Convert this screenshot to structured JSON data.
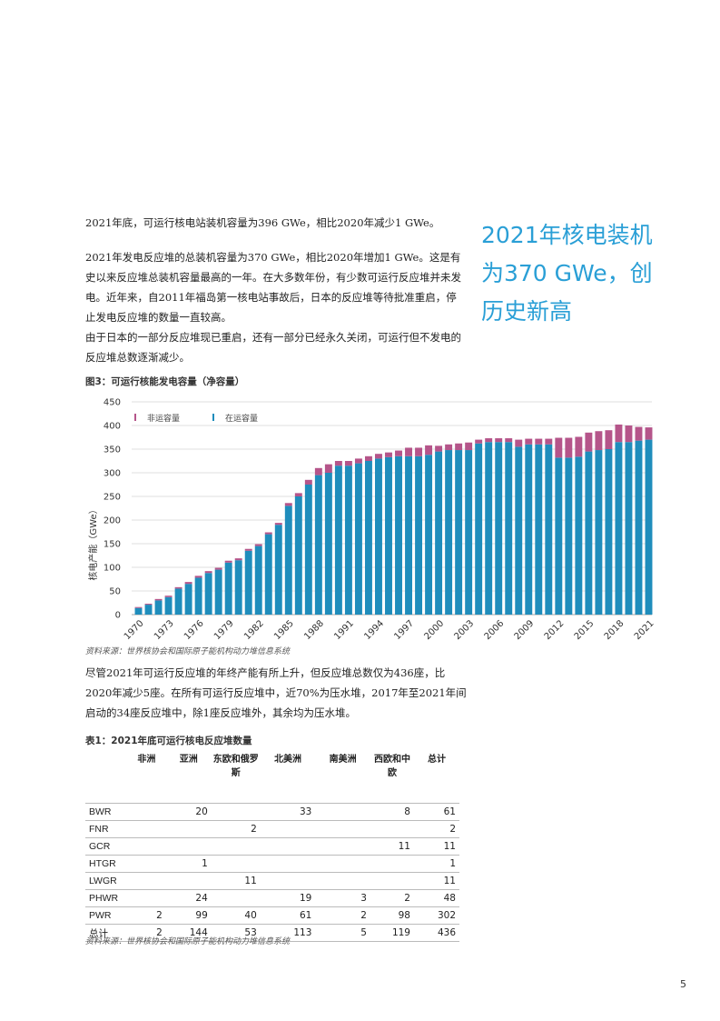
{
  "paragraphs": {
    "p1": "2021年底，可运行核电站装机容量为396 GWe，相比2020年减少1 GWe。",
    "p2": "2021年发电反应堆的总装机容量为370 GWe，相比2020年增加1 GWe。这是有史以来反应堆总装机容量最高的一年。在大多数年份，有少数可运行反应堆并未发电。近年来，自2011年福岛第一核电站事故后，日本的反应堆等待批准重启，停止发电反应堆的数量一直较高。",
    "p3": "由于日本的一部分反应堆现已重启，还有一部分已经永久关闭，可运行但不发电的反应堆总数逐渐减少。",
    "p4": "尽管2021年可运行反应堆的年终产能有所上升，但反应堆总数仅为436座，比2020年减少5座。在所有可运行反应堆中，近70%为压水堆，2017年至2021年间启动的34座反应堆中，除1座反应堆外，其余均为压水堆。"
  },
  "pullquote": "2021年核电装机为370 GWe，创历史新高",
  "figure": {
    "caption": "图3：可运行核能发电容量（净容量）",
    "source": "资料来源：世界核协会和国际原子能机构动力堆信息系统"
  },
  "chart_data": {
    "type": "bar",
    "stacked": true,
    "ylabel": "核电产能（GWe）",
    "ylim": [
      0,
      450
    ],
    "yticks": [
      0,
      50,
      100,
      150,
      200,
      250,
      300,
      350,
      400,
      450
    ],
    "x_tick_labels": [
      "1970",
      "1973",
      "1976",
      "1979",
      "1982",
      "1985",
      "1988",
      "1991",
      "1994",
      "1997",
      "2000",
      "2003",
      "2006",
      "2009",
      "2012",
      "2015",
      "2018",
      "2021"
    ],
    "categories": [
      1970,
      1971,
      1972,
      1973,
      1974,
      1975,
      1976,
      1977,
      1978,
      1979,
      1980,
      1981,
      1982,
      1983,
      1984,
      1985,
      1986,
      1987,
      1988,
      1989,
      1990,
      1991,
      1992,
      1993,
      1994,
      1995,
      1996,
      1997,
      1998,
      1999,
      2000,
      2001,
      2002,
      2003,
      2004,
      2005,
      2006,
      2007,
      2008,
      2009,
      2010,
      2011,
      2012,
      2013,
      2014,
      2015,
      2016,
      2017,
      2018,
      2019,
      2020,
      2021
    ],
    "legend_position": "top-left",
    "grid": "horizontal",
    "colors": {
      "operating": "#1f8dbc",
      "idle": "#b5558a"
    },
    "series": [
      {
        "name": "在运容量",
        "key": "operating",
        "values": [
          14,
          21,
          30,
          37,
          55,
          65,
          78,
          88,
          95,
          110,
          115,
          135,
          145,
          170,
          190,
          230,
          250,
          275,
          295,
          300,
          315,
          315,
          320,
          325,
          330,
          333,
          335,
          335,
          335,
          338,
          345,
          348,
          348,
          348,
          362,
          365,
          365,
          365,
          355,
          360,
          360,
          360,
          332,
          332,
          334,
          345,
          348,
          350,
          365,
          365,
          368,
          370
        ]
      },
      {
        "name": "非运容量",
        "key": "idle",
        "values": [
          2,
          2,
          3,
          3,
          3,
          4,
          4,
          4,
          4,
          4,
          4,
          4,
          4,
          4,
          4,
          6,
          7,
          10,
          15,
          18,
          10,
          10,
          10,
          10,
          10,
          10,
          12,
          18,
          18,
          20,
          12,
          12,
          14,
          16,
          8,
          8,
          8,
          8,
          15,
          12,
          12,
          12,
          42,
          42,
          42,
          40,
          40,
          40,
          37,
          35,
          29,
          26
        ]
      }
    ]
  },
  "table": {
    "caption": "表1：2021年底可运行核电反应堆数量",
    "headers": [
      "",
      "非洲",
      "亚洲",
      "东欧和俄罗斯",
      "北美洲",
      "南美洲",
      "西欧和中欧",
      "总计"
    ],
    "rows": [
      [
        "BWR",
        "",
        "20",
        "",
        "33",
        "",
        "8",
        "61"
      ],
      [
        "FNR",
        "",
        "",
        "2",
        "",
        "",
        "",
        "2"
      ],
      [
        "GCR",
        "",
        "",
        "",
        "",
        "",
        "11",
        "11"
      ],
      [
        "HTGR",
        "",
        "1",
        "",
        "",
        "",
        "",
        "1"
      ],
      [
        "LWGR",
        "",
        "",
        "11",
        "",
        "",
        "",
        "11"
      ],
      [
        "PHWR",
        "",
        "24",
        "",
        "19",
        "3",
        "2",
        "48"
      ],
      [
        "PWR",
        "2",
        "99",
        "40",
        "61",
        "2",
        "98",
        "302"
      ],
      [
        "总计",
        "2",
        "144",
        "53",
        "113",
        "5",
        "119",
        "436"
      ]
    ],
    "source": "资料来源：世界核协会和国际原子能机构动力堆信息系统"
  },
  "page_number": "5"
}
